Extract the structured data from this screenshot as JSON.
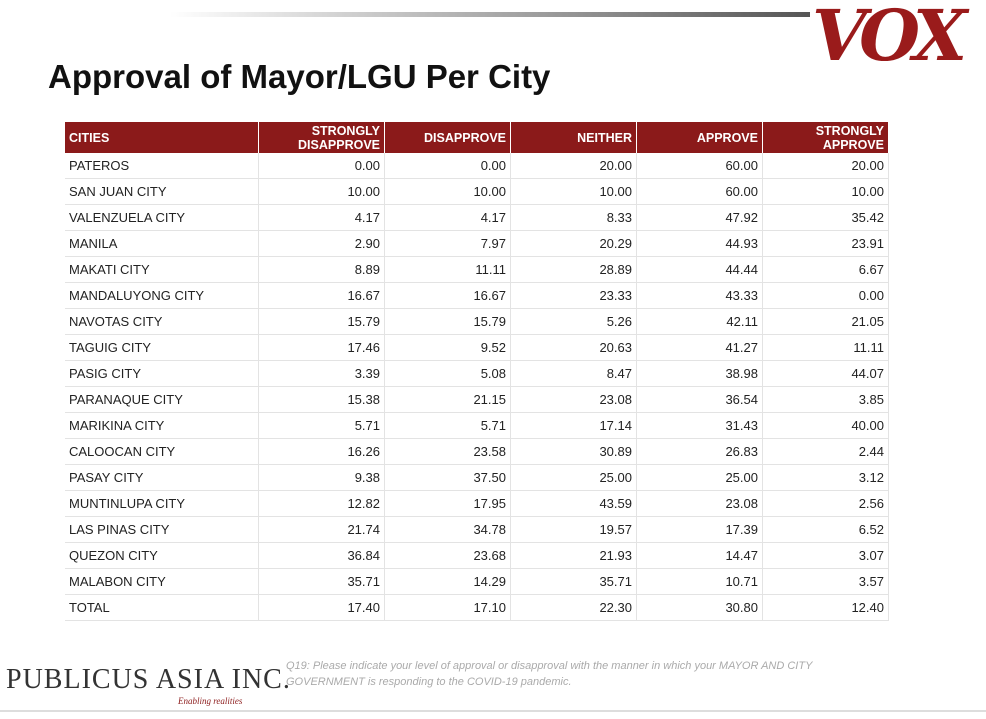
{
  "header": {
    "title": "Approval of Mayor/LGU Per City",
    "brand": "VOX"
  },
  "table": {
    "columns": [
      "CITIES",
      "STRONGLY DISAPPROVE",
      "DISAPPROVE",
      "NEITHER",
      "APPROVE",
      "STRONGLY APPROVE"
    ],
    "rows": [
      [
        "PATEROS",
        "0.00",
        "0.00",
        "20.00",
        "60.00",
        "20.00"
      ],
      [
        "SAN JUAN CITY",
        "10.00",
        "10.00",
        "10.00",
        "60.00",
        "10.00"
      ],
      [
        "VALENZUELA CITY",
        "4.17",
        "4.17",
        "8.33",
        "47.92",
        "35.42"
      ],
      [
        "MANILA",
        "2.90",
        "7.97",
        "20.29",
        "44.93",
        "23.91"
      ],
      [
        "MAKATI CITY",
        "8.89",
        "11.11",
        "28.89",
        "44.44",
        "6.67"
      ],
      [
        "MANDALUYONG CITY",
        "16.67",
        "16.67",
        "23.33",
        "43.33",
        "0.00"
      ],
      [
        "NAVOTAS CITY",
        "15.79",
        "15.79",
        "5.26",
        "42.11",
        "21.05"
      ],
      [
        "TAGUIG CITY",
        "17.46",
        "9.52",
        "20.63",
        "41.27",
        "11.11"
      ],
      [
        "PASIG CITY",
        "3.39",
        "5.08",
        "8.47",
        "38.98",
        "44.07"
      ],
      [
        "PARANAQUE CITY",
        "15.38",
        "21.15",
        "23.08",
        "36.54",
        "3.85"
      ],
      [
        "MARIKINA CITY",
        "5.71",
        "5.71",
        "17.14",
        "31.43",
        "40.00"
      ],
      [
        "CALOOCAN CITY",
        "16.26",
        "23.58",
        "30.89",
        "26.83",
        "2.44"
      ],
      [
        "PASAY CITY",
        "9.38",
        "37.50",
        "25.00",
        "25.00",
        "3.12"
      ],
      [
        "MUNTINLUPA CITY",
        "12.82",
        "17.95",
        "43.59",
        "23.08",
        "2.56"
      ],
      [
        "LAS PINAS CITY",
        "21.74",
        "34.78",
        "19.57",
        "17.39",
        "6.52"
      ],
      [
        "QUEZON CITY",
        "36.84",
        "23.68",
        "21.93",
        "14.47",
        "3.07"
      ],
      [
        "MALABON CITY",
        "35.71",
        "14.29",
        "35.71",
        "10.71",
        "3.57"
      ],
      [
        "TOTAL",
        "17.40",
        "17.10",
        "22.30",
        "30.80",
        "12.40"
      ]
    ]
  },
  "footer": {
    "logo": "PUBLICUS ASIA INC.",
    "tagline": "Enabling realities",
    "note": [
      "Q19: Please indicate your level of approval or disapproval with the manner in which your MAYOR AND CITY",
      "GOVERNMENT is responding to the COVID-19 pandemic."
    ]
  }
}
